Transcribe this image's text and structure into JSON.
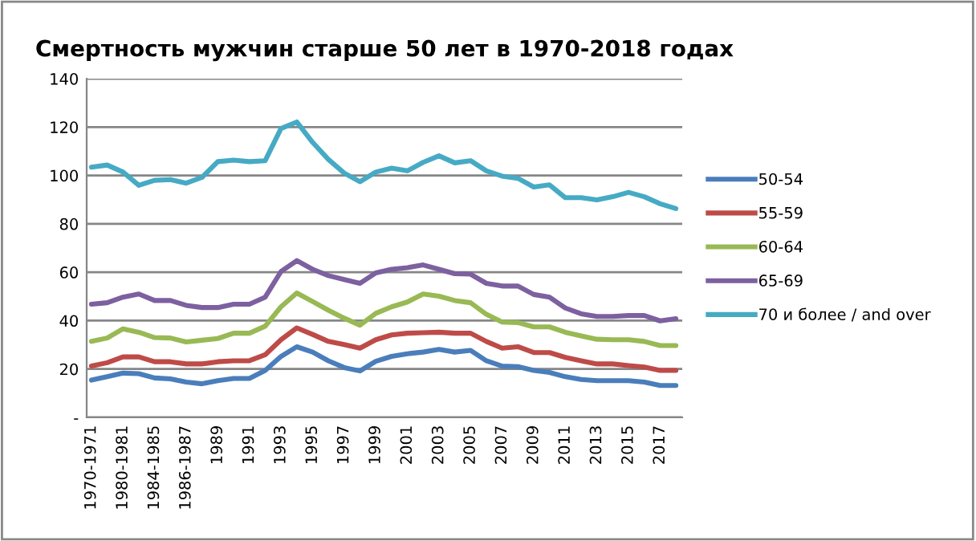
{
  "chart_data": {
    "type": "line",
    "title": "Смертность мужчин старше 50 лет в 1970-2018 годах",
    "categories": [
      "1970-1971",
      null,
      "1980-1981",
      null,
      "1984-1985",
      null,
      "1986-1987",
      null,
      "1989",
      null,
      "1991",
      null,
      "1993",
      null,
      "1995",
      null,
      "1997",
      null,
      "1999",
      null,
      "2001",
      null,
      "2003",
      null,
      "2005",
      null,
      "2007",
      null,
      "2009",
      null,
      "2011",
      null,
      "2013",
      null,
      "2015",
      null,
      "2017",
      null
    ],
    "series": [
      {
        "name": "50-54",
        "color": "#4a7ebb",
        "values": [
          15.4,
          16.8,
          18.3,
          18.1,
          16.3,
          15.9,
          14.6,
          13.9,
          15.2,
          16.1,
          16.1,
          19.4,
          25.2,
          29.2,
          27,
          23.4,
          20.6,
          19.2,
          23.2,
          25.2,
          26.3,
          27,
          28.1,
          27,
          27.7,
          23.4,
          21.2,
          21,
          19.4,
          18.6,
          16.8,
          15.7,
          15.2,
          15.2,
          15.2,
          14.6,
          13.2,
          13.2
        ]
      },
      {
        "name": "55-59",
        "color": "#be4b48",
        "values": [
          21.2,
          22.6,
          25,
          25,
          23,
          23,
          22.1,
          22.1,
          23,
          23.4,
          23.4,
          25.9,
          32.1,
          37,
          34.3,
          31.4,
          30.1,
          28.6,
          32.1,
          34.1,
          34.8,
          35,
          35.2,
          34.8,
          34.8,
          31.4,
          28.6,
          29.2,
          26.8,
          26.8,
          24.8,
          23.4,
          22.1,
          22.1,
          21.4,
          20.8,
          19.4,
          19.4
        ]
      },
      {
        "name": "60-64",
        "color": "#98b954",
        "values": [
          31.4,
          32.8,
          36.6,
          35.2,
          33,
          32.8,
          31.2,
          31.9,
          32.6,
          34.8,
          34.8,
          37.7,
          45.7,
          51.4,
          47.9,
          44.3,
          41,
          38.1,
          43,
          45.7,
          47.7,
          51,
          50.1,
          48.3,
          47.4,
          42.6,
          39.4,
          39.2,
          37.4,
          37.4,
          35.2,
          33.7,
          32.3,
          32.1,
          32.1,
          31.4,
          29.7,
          29.7
        ]
      },
      {
        "name": "65-69",
        "color": "#7d60a0",
        "values": [
          46.8,
          47.4,
          49.7,
          51,
          48.3,
          48.3,
          46.3,
          45.4,
          45.4,
          46.8,
          46.8,
          49.7,
          60.3,
          64.8,
          61.2,
          58.6,
          57,
          55.4,
          59.7,
          61.2,
          61.9,
          63,
          61.2,
          59.4,
          59.2,
          55.4,
          54.3,
          54.3,
          50.8,
          49.7,
          45.2,
          42.8,
          41.7,
          41.7,
          42.1,
          42.1,
          39.9,
          40.8
        ]
      },
      {
        "name": "70 и более / and over",
        "color": "#46aac5",
        "values": [
          103.4,
          104.3,
          101.4,
          95.9,
          98,
          98.3,
          96.8,
          99.2,
          105.7,
          106.3,
          105.7,
          106.1,
          119.4,
          122.1,
          113.7,
          106.6,
          101,
          97.4,
          101.4,
          103,
          101.9,
          105.4,
          108.1,
          105.2,
          106.1,
          101.9,
          99.7,
          98.8,
          95.2,
          96.1,
          90.8,
          90.8,
          89.9,
          91.2,
          93,
          91.2,
          88.3,
          86.3
        ]
      }
    ],
    "ylim": [
      0,
      140
    ],
    "yticks": [
      {
        "value": 0,
        "label": "-"
      },
      20,
      40,
      60,
      80,
      100,
      120,
      140
    ],
    "grid": "y",
    "legend": "right",
    "marker": "none",
    "line_style": "solid"
  }
}
